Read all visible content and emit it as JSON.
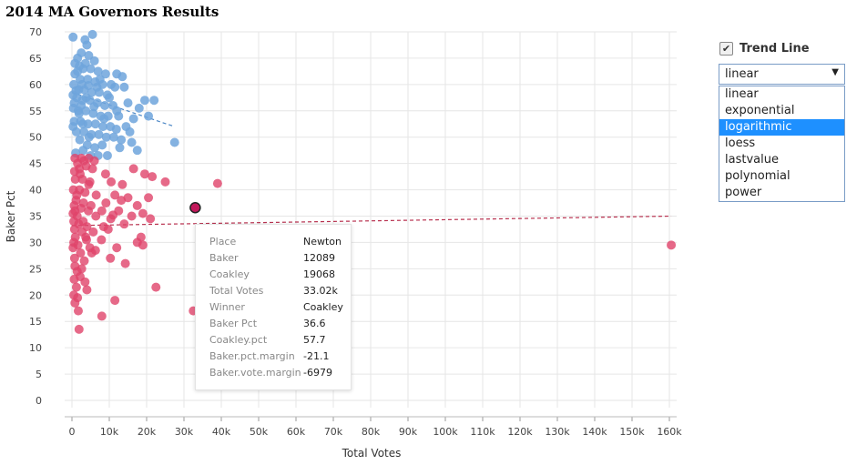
{
  "title": "2014 MA Governors Results",
  "controls": {
    "trend_label": "Trend Line",
    "trend_checked": true,
    "selected": "linear",
    "options": [
      "linear",
      "exponential",
      "logarithmic",
      "loess",
      "lastvalue",
      "polynomial",
      "power"
    ],
    "highlighted": "logarithmic"
  },
  "tooltip": {
    "rows": [
      {
        "key": "Place",
        "value": "Newton"
      },
      {
        "key": "Baker",
        "value": "12089"
      },
      {
        "key": "Coakley",
        "value": "19068"
      },
      {
        "key": "Total Votes",
        "value": "33.02k"
      },
      {
        "key": "Winner",
        "value": "Coakley"
      },
      {
        "key": "Baker Pct",
        "value": "36.6"
      },
      {
        "key": "Coakley.pct",
        "value": "57.7"
      },
      {
        "key": "Baker.pct.margin",
        "value": "-21.1"
      },
      {
        "key": "Baker.vote.margin",
        "value": "-6979"
      }
    ]
  },
  "chart_data": {
    "type": "scatter",
    "xlabel": "Total Votes",
    "ylabel": "Baker Pct",
    "xlim": [
      0,
      160000
    ],
    "ylim": [
      0,
      70
    ],
    "xticks": [
      0,
      10000,
      20000,
      30000,
      40000,
      50000,
      60000,
      70000,
      80000,
      90000,
      100000,
      110000,
      120000,
      130000,
      140000,
      150000,
      160000
    ],
    "xtick_labels": [
      "0",
      "10k",
      "20k",
      "30k",
      "40k",
      "50k",
      "60k",
      "70k",
      "80k",
      "90k",
      "100k",
      "110k",
      "120k",
      "130k",
      "140k",
      "150k",
      "160k"
    ],
    "yticks": [
      0,
      5,
      10,
      15,
      20,
      25,
      30,
      35,
      40,
      45,
      50,
      55,
      60,
      65,
      70
    ],
    "grid": true,
    "colors": {
      "baker": "#6fa4dc",
      "coakley": "#e0436a",
      "highlight": "#c2185b"
    },
    "series": [
      {
        "winner": "Baker",
        "points": [
          [
            300,
            69
          ],
          [
            3500,
            68.5
          ],
          [
            5500,
            69.5
          ],
          [
            4000,
            67.5
          ],
          [
            2500,
            66
          ],
          [
            1500,
            65
          ],
          [
            4500,
            65.5
          ],
          [
            6000,
            64.5
          ],
          [
            800,
            64
          ],
          [
            2000,
            63.5
          ],
          [
            3000,
            63
          ],
          [
            5000,
            63
          ],
          [
            7000,
            62.5
          ],
          [
            9000,
            62
          ],
          [
            12000,
            62
          ],
          [
            13500,
            61.5
          ],
          [
            800,
            62
          ],
          [
            2200,
            61
          ],
          [
            4200,
            61
          ],
          [
            6200,
            60.5
          ],
          [
            8200,
            60
          ],
          [
            10500,
            60
          ],
          [
            11500,
            59.5
          ],
          [
            14000,
            59.5
          ],
          [
            500,
            60
          ],
          [
            1800,
            59
          ],
          [
            3300,
            59
          ],
          [
            5300,
            58.5
          ],
          [
            7300,
            58.5
          ],
          [
            9500,
            58
          ],
          [
            300,
            58
          ],
          [
            1300,
            57.5
          ],
          [
            2800,
            57
          ],
          [
            4800,
            57
          ],
          [
            6800,
            56.5
          ],
          [
            8800,
            56
          ],
          [
            11000,
            56
          ],
          [
            15000,
            56.5
          ],
          [
            19500,
            57
          ],
          [
            22000,
            57
          ],
          [
            400,
            55.5
          ],
          [
            1700,
            55
          ],
          [
            3700,
            55
          ],
          [
            5700,
            54.5
          ],
          [
            7700,
            54
          ],
          [
            9700,
            54
          ],
          [
            12500,
            54
          ],
          [
            16500,
            53.5
          ],
          [
            20500,
            54
          ],
          [
            600,
            53
          ],
          [
            2300,
            53
          ],
          [
            4300,
            52.5
          ],
          [
            6300,
            52.5
          ],
          [
            8300,
            52
          ],
          [
            10300,
            52
          ],
          [
            14500,
            52
          ],
          [
            300,
            52
          ],
          [
            1200,
            51
          ],
          [
            3200,
            51
          ],
          [
            5200,
            50.5
          ],
          [
            7200,
            50.5
          ],
          [
            9200,
            50
          ],
          [
            11200,
            50
          ],
          [
            13200,
            49.5
          ],
          [
            16000,
            49
          ],
          [
            27500,
            49
          ],
          [
            2100,
            49.5
          ],
          [
            4100,
            48.5
          ],
          [
            6100,
            48
          ],
          [
            8100,
            48.5
          ],
          [
            12800,
            48
          ],
          [
            17500,
            47.5
          ],
          [
            1000,
            47
          ],
          [
            3000,
            47.5
          ],
          [
            5000,
            46.5
          ],
          [
            7000,
            46.5
          ],
          [
            9500,
            46.5
          ],
          [
            1500,
            62.5
          ],
          [
            2700,
            60
          ],
          [
            3800,
            57.5
          ],
          [
            600,
            56.5
          ],
          [
            1900,
            54.5
          ],
          [
            2900,
            52.5
          ],
          [
            4600,
            50
          ],
          [
            6700,
            59.5
          ],
          [
            10000,
            57.5
          ],
          [
            12000,
            55
          ],
          [
            18000,
            55.5
          ],
          [
            3600,
            64
          ],
          [
            7500,
            61
          ],
          [
            5900,
            55.8
          ],
          [
            8600,
            53.5
          ],
          [
            11900,
            51.5
          ],
          [
            15500,
            51
          ],
          [
            1100,
            58.8
          ],
          [
            2500,
            56
          ],
          [
            4400,
            59.8
          ]
        ]
      },
      {
        "winner": "Coakley",
        "points": [
          [
            800,
            46
          ],
          [
            2500,
            46
          ],
          [
            3200,
            45.5
          ],
          [
            4500,
            46
          ],
          [
            6000,
            45.5
          ],
          [
            1500,
            45
          ],
          [
            3800,
            44.5
          ],
          [
            5500,
            44
          ],
          [
            700,
            43.5
          ],
          [
            2200,
            43
          ],
          [
            9000,
            43
          ],
          [
            16500,
            44
          ],
          [
            19500,
            43
          ],
          [
            21500,
            42.5
          ],
          [
            900,
            42
          ],
          [
            2800,
            42
          ],
          [
            4800,
            41.5
          ],
          [
            10500,
            41.5
          ],
          [
            13500,
            41
          ],
          [
            25000,
            41.5
          ],
          [
            39000,
            41.2
          ],
          [
            400,
            40
          ],
          [
            2000,
            40
          ],
          [
            3500,
            39.5
          ],
          [
            6500,
            39
          ],
          [
            11500,
            39
          ],
          [
            15000,
            38.5
          ],
          [
            20500,
            38.5
          ],
          [
            1100,
            38
          ],
          [
            3100,
            37.5
          ],
          [
            5100,
            37
          ],
          [
            9100,
            37.5
          ],
          [
            13200,
            38
          ],
          [
            17500,
            37
          ],
          [
            600,
            37
          ],
          [
            2400,
            36.5
          ],
          [
            4400,
            36
          ],
          [
            8000,
            36
          ],
          [
            12500,
            36
          ],
          [
            300,
            35.5
          ],
          [
            1400,
            35
          ],
          [
            6400,
            35
          ],
          [
            10400,
            34.5
          ],
          [
            16000,
            35
          ],
          [
            19000,
            35.5
          ],
          [
            21000,
            34.5
          ],
          [
            3000,
            34
          ],
          [
            11000,
            35.2
          ],
          [
            500,
            34
          ],
          [
            1800,
            33.5
          ],
          [
            4000,
            33
          ],
          [
            8500,
            33
          ],
          [
            14000,
            33.5
          ],
          [
            700,
            32.5
          ],
          [
            2700,
            32
          ],
          [
            5700,
            32
          ],
          [
            9700,
            32.5
          ],
          [
            18500,
            31
          ],
          [
            900,
            31
          ],
          [
            3900,
            30.5
          ],
          [
            7900,
            30.5
          ],
          [
            17500,
            30
          ],
          [
            500,
            30
          ],
          [
            1600,
            29.5
          ],
          [
            4800,
            29
          ],
          [
            6300,
            28.5
          ],
          [
            12000,
            29
          ],
          [
            19000,
            29.5
          ],
          [
            300,
            29
          ],
          [
            2300,
            28
          ],
          [
            5300,
            28
          ],
          [
            10300,
            27
          ],
          [
            14300,
            26
          ],
          [
            700,
            27
          ],
          [
            3300,
            26.5
          ],
          [
            800,
            25.5
          ],
          [
            1400,
            24.5
          ],
          [
            2200,
            23.5
          ],
          [
            600,
            23
          ],
          [
            3500,
            22.5
          ],
          [
            1200,
            21.5
          ],
          [
            4000,
            21
          ],
          [
            22500,
            21.5
          ],
          [
            500,
            20
          ],
          [
            1500,
            19.5
          ],
          [
            11500,
            19
          ],
          [
            800,
            18.5
          ],
          [
            1700,
            17
          ],
          [
            8000,
            16
          ],
          [
            32500,
            17
          ],
          [
            1900,
            13.5
          ],
          [
            160500,
            29.5
          ],
          [
            800,
            36
          ],
          [
            2000,
            44
          ],
          [
            4500,
            41
          ],
          [
            1300,
            39
          ],
          [
            3700,
            31
          ],
          [
            2600,
            25
          ]
        ]
      }
    ],
    "highlight": {
      "x": 33020,
      "y": 36.6
    },
    "trend_lines": [
      {
        "winner": "Baker",
        "style": "dashed",
        "x": [
          0,
          27500
        ],
        "y": [
          58.5,
          52
        ]
      },
      {
        "winner": "Coakley",
        "style": "dashed",
        "x": [
          0,
          160500
        ],
        "y": [
          33.2,
          35
        ]
      }
    ]
  }
}
